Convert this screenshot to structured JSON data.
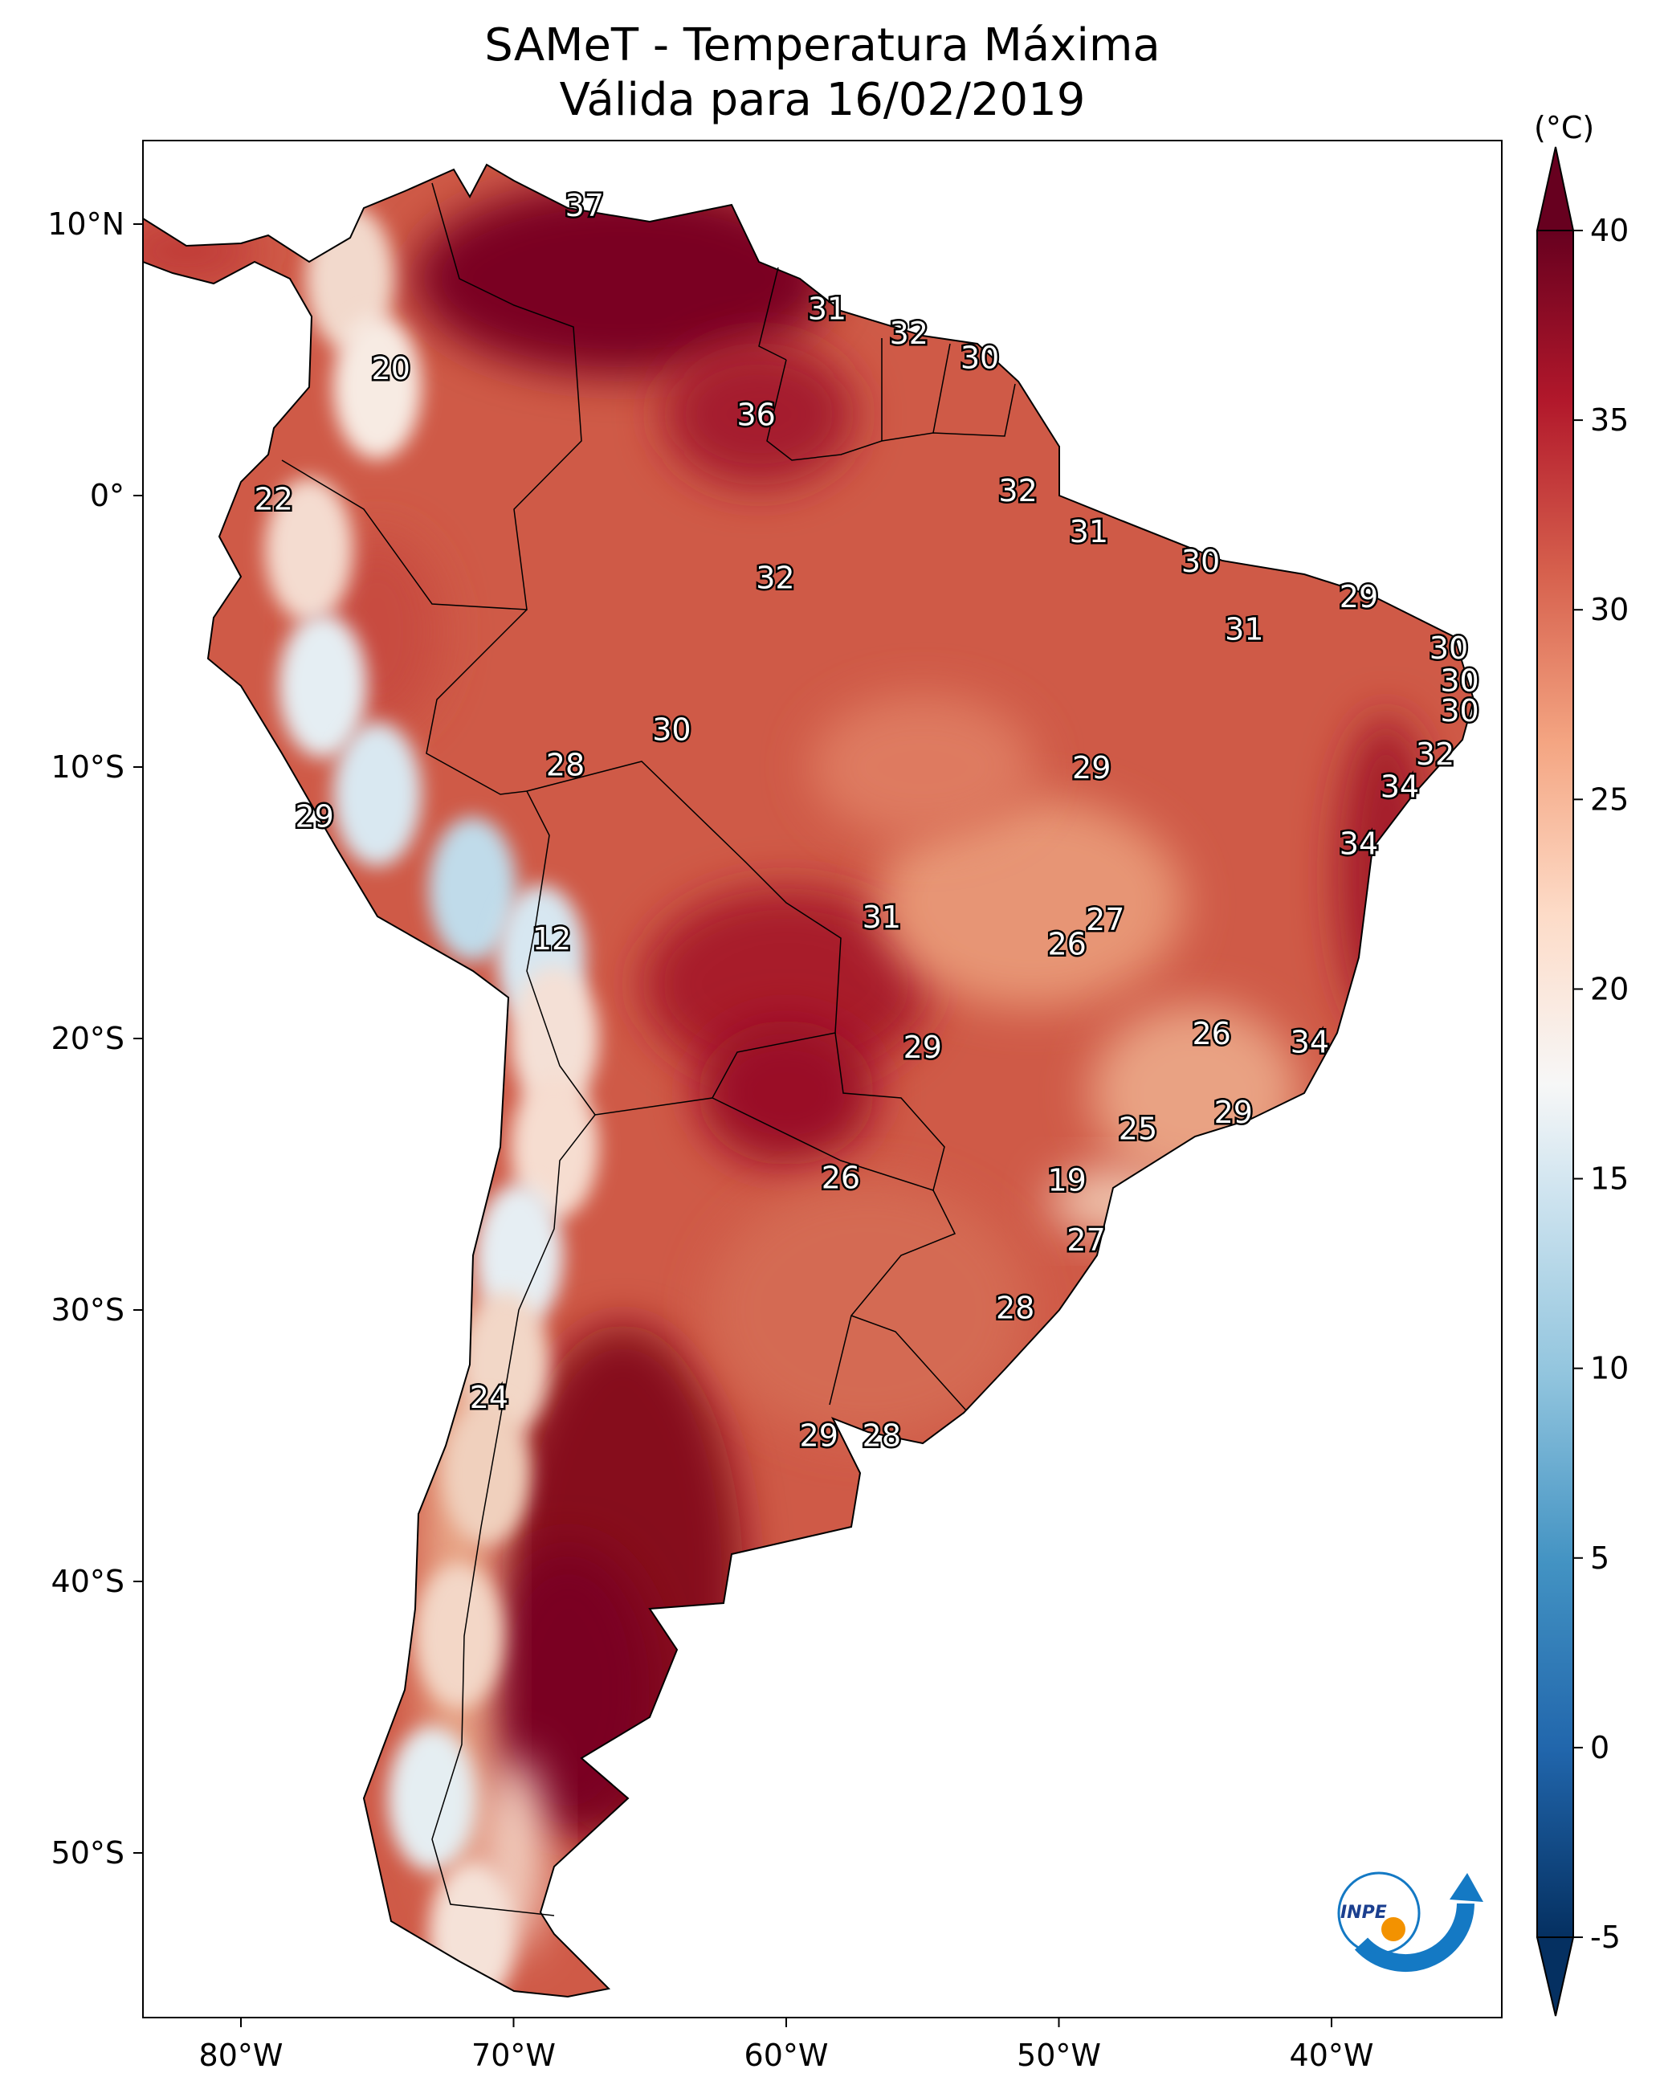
{
  "title": {
    "line1": "SAMeT - Temperatura Máxima",
    "line2": "Válida para 16/02/2019"
  },
  "chart_data": {
    "type": "heatmap",
    "title": "SAMeT - Temperatura Máxima / Válida para 16/02/2019",
    "variable": "Maximum temperature",
    "xlim": [
      -83.6,
      -34
    ],
    "ylim": [
      -56.5,
      12.9
    ],
    "x_ticks": [
      {
        "value": -80,
        "label": "80°W"
      },
      {
        "value": -70,
        "label": "70°W"
      },
      {
        "value": -60,
        "label": "60°W"
      },
      {
        "value": -50,
        "label": "50°W"
      },
      {
        "value": -40,
        "label": "40°W"
      }
    ],
    "y_ticks": [
      {
        "value": 10,
        "label": "10°N"
      },
      {
        "value": 0,
        "label": "0°"
      },
      {
        "value": -10,
        "label": "10°S"
      },
      {
        "value": -20,
        "label": "20°S"
      },
      {
        "value": -30,
        "label": "30°S"
      },
      {
        "value": -40,
        "label": "40°S"
      },
      {
        "value": -50,
        "label": "50°S"
      }
    ],
    "colorbar": {
      "label": "(°C)",
      "min": -5,
      "max": 40,
      "ticks": [
        "-5",
        "0",
        "5",
        "10",
        "15",
        "20",
        "25",
        "30",
        "35",
        "40"
      ],
      "colormap_low": "#053061",
      "colormap_mid": "#f7f7f7",
      "colormap_high": "#67001f",
      "extend": "both"
    },
    "station_labels": [
      {
        "lon": -67.4,
        "lat": 10.6,
        "value": "37"
      },
      {
        "lon": -58.5,
        "lat": 6.8,
        "value": "31"
      },
      {
        "lon": -55.5,
        "lat": 5.9,
        "value": "32"
      },
      {
        "lon": -52.9,
        "lat": 5.0,
        "value": "30"
      },
      {
        "lon": -74.5,
        "lat": 4.6,
        "value": "20"
      },
      {
        "lon": -61.1,
        "lat": 2.9,
        "value": "36"
      },
      {
        "lon": -78.8,
        "lat": -0.2,
        "value": "22"
      },
      {
        "lon": -51.5,
        "lat": 0.1,
        "value": "32"
      },
      {
        "lon": -48.9,
        "lat": -1.4,
        "value": "31"
      },
      {
        "lon": -44.8,
        "lat": -2.5,
        "value": "30"
      },
      {
        "lon": -60.4,
        "lat": -3.1,
        "value": "32"
      },
      {
        "lon": -39.0,
        "lat": -3.8,
        "value": "29"
      },
      {
        "lon": -43.2,
        "lat": -5.0,
        "value": "31"
      },
      {
        "lon": -35.7,
        "lat": -5.7,
        "value": "30"
      },
      {
        "lon": -35.3,
        "lat": -6.9,
        "value": "30"
      },
      {
        "lon": -35.3,
        "lat": -8.0,
        "value": "30"
      },
      {
        "lon": -64.2,
        "lat": -8.7,
        "value": "30"
      },
      {
        "lon": -36.2,
        "lat": -9.6,
        "value": "32"
      },
      {
        "lon": -68.1,
        "lat": -10.0,
        "value": "28"
      },
      {
        "lon": -48.8,
        "lat": -10.1,
        "value": "29"
      },
      {
        "lon": -37.5,
        "lat": -10.8,
        "value": "34"
      },
      {
        "lon": -77.3,
        "lat": -11.9,
        "value": "29"
      },
      {
        "lon": -39.0,
        "lat": -12.9,
        "value": "34"
      },
      {
        "lon": -56.5,
        "lat": -15.6,
        "value": "31"
      },
      {
        "lon": -48.3,
        "lat": -15.7,
        "value": "27"
      },
      {
        "lon": -68.6,
        "lat": -16.4,
        "value": "12"
      },
      {
        "lon": -49.7,
        "lat": -16.6,
        "value": "26"
      },
      {
        "lon": -44.4,
        "lat": -19.9,
        "value": "26"
      },
      {
        "lon": -40.8,
        "lat": -20.2,
        "value": "34"
      },
      {
        "lon": -55.0,
        "lat": -20.4,
        "value": "29"
      },
      {
        "lon": -43.6,
        "lat": -22.8,
        "value": "29"
      },
      {
        "lon": -47.1,
        "lat": -23.4,
        "value": "25"
      },
      {
        "lon": -58.0,
        "lat": -25.2,
        "value": "26"
      },
      {
        "lon": -49.7,
        "lat": -25.3,
        "value": "19"
      },
      {
        "lon": -49.0,
        "lat": -27.5,
        "value": "27"
      },
      {
        "lon": -51.6,
        "lat": -30.0,
        "value": "28"
      },
      {
        "lon": -70.9,
        "lat": -33.3,
        "value": "24"
      },
      {
        "lon": -58.8,
        "lat": -34.7,
        "value": "29"
      },
      {
        "lon": -56.5,
        "lat": -34.7,
        "value": "28"
      }
    ]
  },
  "logo": {
    "text": "INPE"
  }
}
